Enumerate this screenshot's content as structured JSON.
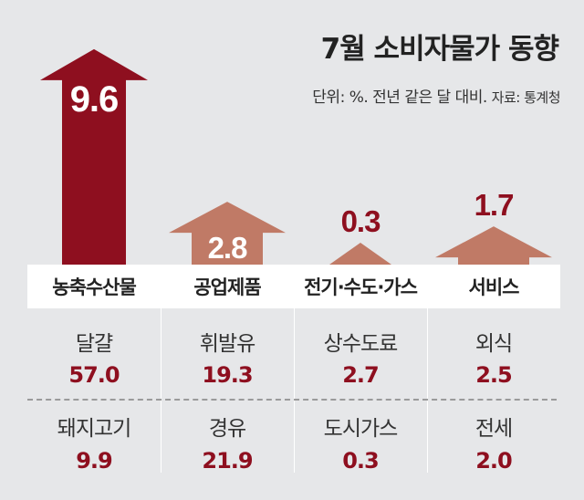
{
  "title": "7월 소비자물가 동향",
  "subtitle": "단위: %. 전년 같은 달 대비.",
  "source": "자료: 통계청",
  "colors": {
    "highlight": "#8e0f1f",
    "normal": "#c07a66",
    "label_bg": "#ffffff"
  },
  "chart_data": {
    "type": "bar",
    "title": "7월 소비자물가 동향",
    "unit": "%",
    "categories": [
      "농축수산물",
      "공업제품",
      "전기·수도·가스",
      "서비스"
    ],
    "values": [
      9.6,
      2.8,
      0.3,
      1.7
    ],
    "value_labels": [
      "9.6",
      "2.8",
      "0.3",
      "1.7"
    ],
    "highlight_index": 0,
    "items": [
      [
        {
          "name": "달걀",
          "value": "57.0"
        },
        {
          "name": "돼지고기",
          "value": "9.9"
        }
      ],
      [
        {
          "name": "휘발유",
          "value": "19.3"
        },
        {
          "name": "경유",
          "value": "21.9"
        }
      ],
      [
        {
          "name": "상수도료",
          "value": "2.7"
        },
        {
          "name": "도시가스",
          "value": "0.3"
        }
      ],
      [
        {
          "name": "외식",
          "value": "2.5"
        },
        {
          "name": "전세",
          "value": "2.0"
        }
      ]
    ]
  }
}
